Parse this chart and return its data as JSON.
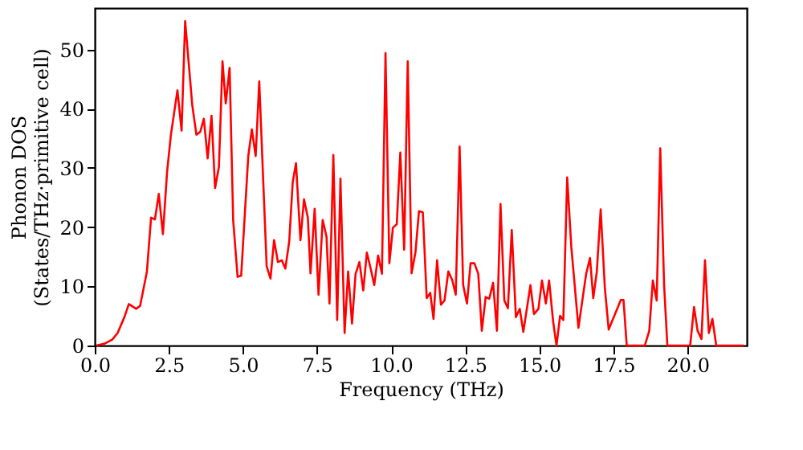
{
  "chart_data": {
    "type": "line",
    "xlabel": "Frequency (THz)",
    "ylabel": "Phonon DOS\n(States/THz·primitive cell)",
    "xlim": [
      0,
      22
    ],
    "ylim": [
      0,
      57
    ],
    "xticks": [
      {
        "value": 0,
        "label": "0.0"
      },
      {
        "value": 2.5,
        "label": "2.5"
      },
      {
        "value": 5,
        "label": "5.0"
      },
      {
        "value": 7.5,
        "label": "7.5"
      },
      {
        "value": 10,
        "label": "10.0"
      },
      {
        "value": 12.5,
        "label": "12.5"
      },
      {
        "value": 15,
        "label": "15.0"
      },
      {
        "value": 17.5,
        "label": "17.5"
      },
      {
        "value": 20,
        "label": "20.0"
      }
    ],
    "yticks": [
      0,
      10,
      20,
      30,
      40,
      50
    ],
    "grid": false,
    "series": [
      {
        "color": "#ff0000",
        "x": [
          0.05,
          0.32,
          0.59,
          0.77,
          1.0,
          1.15,
          1.4,
          1.53,
          1.76,
          1.9,
          2.03,
          2.16,
          2.3,
          2.44,
          2.57,
          2.79,
          2.93,
          3.05,
          3.29,
          3.43,
          3.56,
          3.68,
          3.81,
          3.94,
          4.06,
          4.19,
          4.31,
          4.42,
          4.55,
          4.67,
          4.82,
          4.94,
          5.18,
          5.3,
          5.43,
          5.55,
          5.8,
          5.93,
          6.05,
          6.18,
          6.31,
          6.43,
          6.56,
          6.68,
          6.79,
          6.94,
          7.06,
          7.19,
          7.28,
          7.42,
          7.55,
          7.69,
          7.82,
          7.92,
          8.05,
          8.18,
          8.29,
          8.43,
          8.55,
          8.68,
          8.8,
          8.93,
          9.06,
          9.18,
          9.31,
          9.43,
          9.56,
          9.69,
          9.81,
          9.94,
          10.06,
          10.19,
          10.31,
          10.44,
          10.56,
          10.69,
          10.82,
          10.94,
          11.07,
          11.2,
          11.32,
          11.43,
          11.55,
          11.68,
          11.8,
          11.93,
          12.06,
          12.18,
          12.31,
          12.43,
          12.56,
          12.68,
          12.81,
          12.94,
          13.06,
          13.19,
          13.31,
          13.44,
          13.57,
          13.69,
          13.82,
          13.94,
          14.07,
          14.21,
          14.34,
          14.46,
          14.7,
          14.82,
          14.97,
          15.09,
          15.22,
          15.33,
          15.47,
          15.58,
          15.7,
          15.81,
          15.94,
          16.08,
          16.32,
          16.58,
          16.71,
          16.82,
          16.94,
          17.07,
          17.21,
          17.34,
          17.75,
          17.84,
          17.95,
          18.56,
          18.71,
          18.83,
          18.96,
          19.08,
          19.21,
          19.32,
          20.09,
          20.22,
          20.34,
          20.47,
          20.59,
          20.72,
          20.84,
          20.97,
          21.89
        ],
        "values": [
          0,
          0.3,
          1.0,
          2.1,
          4.8,
          7.0,
          6.2,
          6.7,
          12.5,
          21.6,
          21.3,
          25.6,
          18.8,
          29.3,
          35.6,
          43.1,
          36.3,
          54.8,
          40.6,
          35.6,
          36.1,
          38.3,
          31.6,
          38.8,
          26.6,
          30.2,
          48.0,
          40.9,
          46.9,
          21.2,
          11.6,
          11.8,
          32.0,
          36.5,
          32.0,
          44.6,
          13.4,
          11.3,
          17.8,
          14.1,
          14.4,
          13.0,
          17.5,
          27.6,
          30.8,
          17.8,
          24.7,
          21.6,
          12.2,
          23.1,
          8.6,
          21.2,
          18.4,
          7.1,
          32.2,
          4.3,
          28.2,
          2.1,
          12.5,
          3.7,
          12.1,
          14.1,
          9.3,
          15.7,
          13.0,
          10.2,
          15.2,
          12.1,
          49.4,
          13.9,
          19.9,
          20.5,
          32.6,
          16.2,
          48.0,
          12.2,
          15.7,
          22.7,
          22.5,
          8.0,
          8.9,
          4.5,
          14.4,
          6.9,
          7.6,
          12.5,
          11.1,
          8.6,
          33.6,
          10.2,
          7.1,
          13.9,
          13.9,
          12.1,
          2.5,
          8.2,
          7.9,
          10.6,
          2.5,
          23.9,
          7.6,
          6.3,
          19.5,
          4.8,
          6.2,
          2.3,
          10.2,
          5.3,
          6.2,
          11.0,
          7.1,
          11.0,
          3.9,
          0,
          5.0,
          4.3,
          28.4,
          16.6,
          3.0,
          12.1,
          14.8,
          8.0,
          12.5,
          23.0,
          9.8,
          2.7,
          7.7,
          7.7,
          0,
          0,
          2.5,
          11.0,
          7.6,
          33.3,
          10.2,
          0,
          0,
          6.5,
          2.5,
          1.1,
          14.4,
          2.1,
          4.5,
          0,
          0
        ]
      }
    ]
  }
}
